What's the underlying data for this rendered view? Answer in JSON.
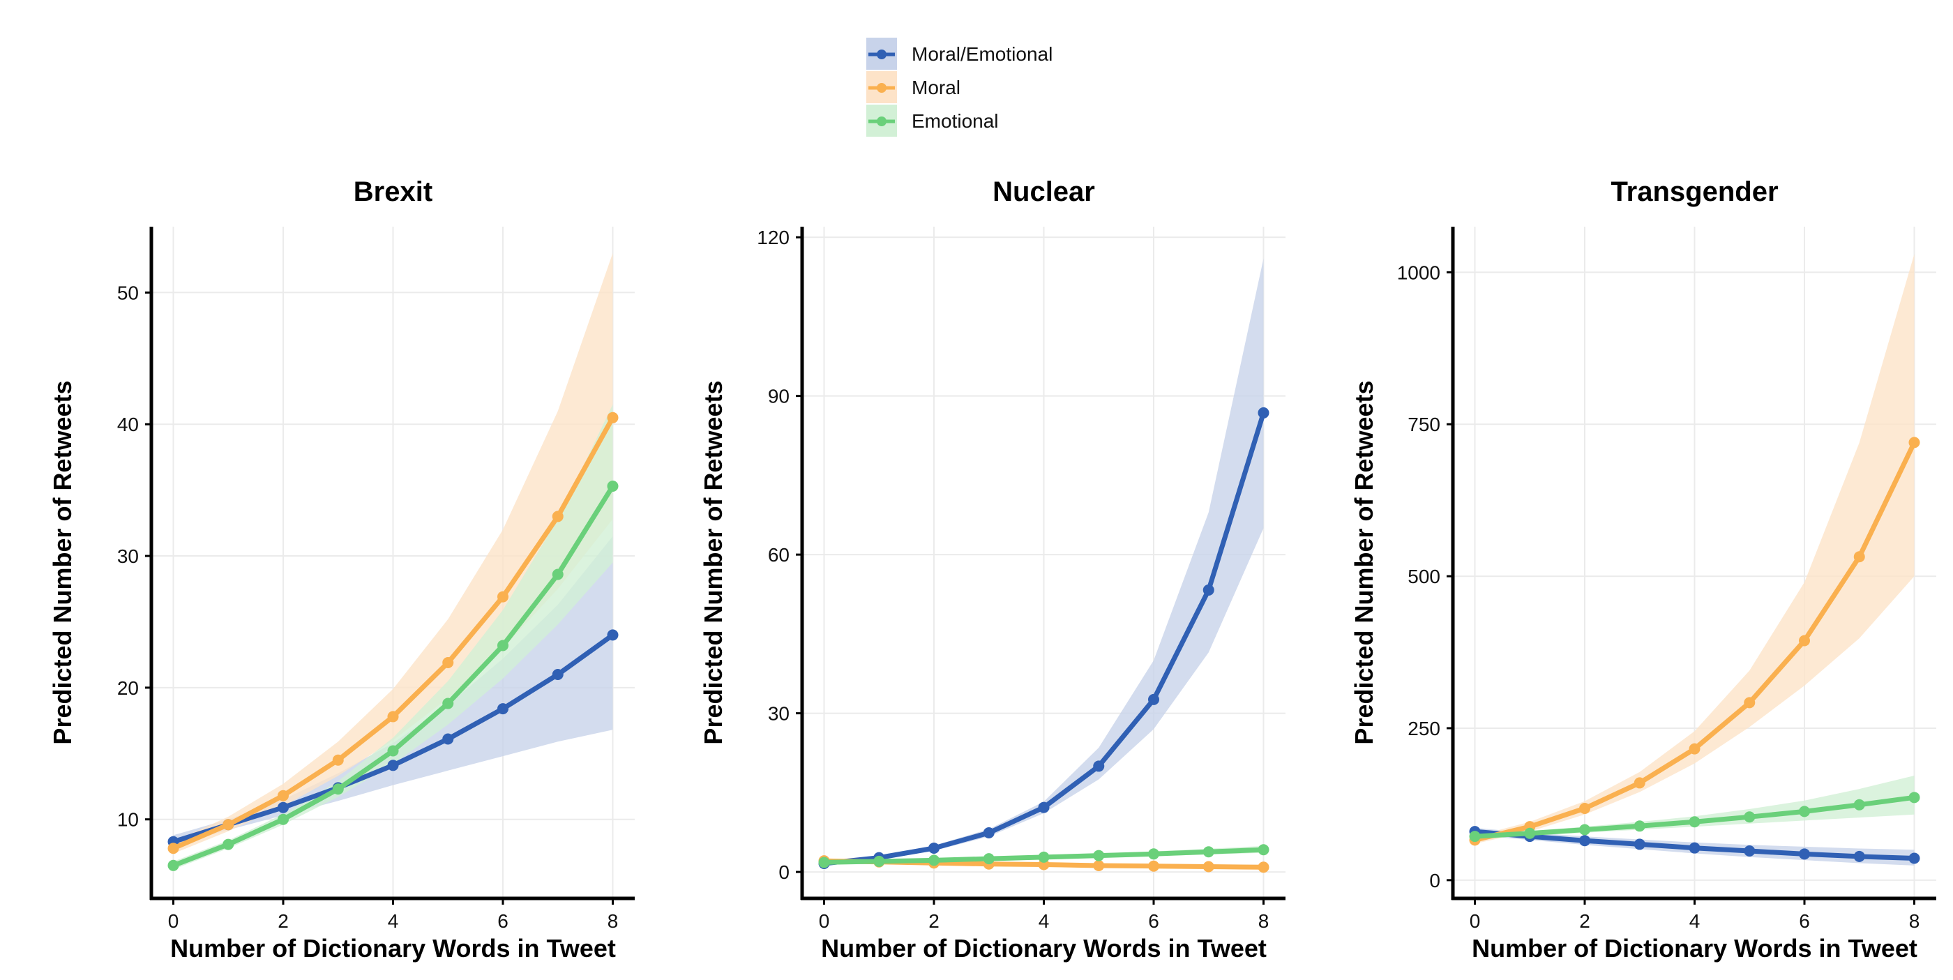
{
  "legend": {
    "placement": "top-center",
    "items": [
      {
        "label": "Moral/Emotional",
        "color": "#3060B4",
        "band_color": "#C8D3EA"
      },
      {
        "label": "Moral",
        "color": "#FAB04F",
        "band_color": "#FDE3C8"
      },
      {
        "label": "Emotional",
        "color": "#6AD07A",
        "band_color": "#D2F0D6"
      }
    ]
  },
  "chart_data": [
    {
      "type": "line",
      "title": "Brexit",
      "xlabel": "Number of Dictionary Words in Tweet",
      "ylabel": "Predicted Number of Retweets",
      "x": [
        0,
        1,
        2,
        3,
        4,
        5,
        6,
        7,
        8
      ],
      "xlim": [
        -0.4,
        8.4
      ],
      "ylim": [
        4,
        55
      ],
      "xticks": [
        0,
        2,
        4,
        6,
        8
      ],
      "yticks": [
        10,
        20,
        30,
        40,
        50
      ],
      "grid": true,
      "series": [
        {
          "name": "Moral/Emotional",
          "color": "#3060B4",
          "band_color": "#C8D3EA",
          "values": [
            8.3,
            9.6,
            10.9,
            12.4,
            14.1,
            16.1,
            18.4,
            21.0,
            24.0
          ],
          "lower": [
            8.0,
            9.2,
            10.3,
            11.4,
            12.6,
            13.7,
            14.8,
            15.9,
            16.8
          ],
          "upper": [
            8.8,
            10.0,
            11.5,
            13.5,
            15.8,
            18.7,
            22.2,
            26.3,
            31.5
          ]
        },
        {
          "name": "Moral",
          "color": "#FAB04F",
          "band_color": "#FDE3C8",
          "values": [
            7.8,
            9.6,
            11.8,
            14.5,
            17.8,
            21.9,
            26.9,
            33.0,
            40.5
          ],
          "lower": [
            7.4,
            9.1,
            11.0,
            13.3,
            16.0,
            19.2,
            23.0,
            27.5,
            32.8
          ],
          "upper": [
            8.3,
            10.2,
            12.7,
            15.9,
            19.9,
            25.2,
            32.0,
            41.0,
            53.0
          ]
        },
        {
          "name": "Emotional",
          "color": "#6AD07A",
          "band_color": "#D2F0D6",
          "values": [
            6.5,
            8.1,
            10.0,
            12.3,
            15.2,
            18.8,
            23.2,
            28.6,
            35.3
          ],
          "lower": [
            6.2,
            7.8,
            9.6,
            11.7,
            14.2,
            17.2,
            20.7,
            24.8,
            29.5
          ],
          "upper": [
            6.8,
            8.4,
            10.4,
            12.9,
            16.2,
            20.5,
            25.9,
            32.8,
            41.5
          ]
        }
      ]
    },
    {
      "type": "line",
      "title": "Nuclear",
      "xlabel": "Number of Dictionary Words in Tweet",
      "ylabel": "Predicted Number of Retweets",
      "x": [
        0,
        1,
        2,
        3,
        4,
        5,
        6,
        7,
        8
      ],
      "xlim": [
        -0.4,
        8.4
      ],
      "ylim": [
        -5,
        122
      ],
      "xticks": [
        0,
        2,
        4,
        6,
        8
      ],
      "yticks": [
        0,
        30,
        60,
        90,
        120
      ],
      "grid": true,
      "series": [
        {
          "name": "Moral/Emotional",
          "color": "#3060B4",
          "band_color": "#C8D3EA",
          "values": [
            1.6,
            2.7,
            4.5,
            7.4,
            12.2,
            20.0,
            32.6,
            53.3,
            86.8
          ],
          "lower": [
            1.3,
            2.3,
            4.0,
            6.7,
            11.1,
            17.5,
            27.0,
            41.5,
            65.0
          ],
          "upper": [
            2.0,
            3.1,
            5.0,
            8.1,
            13.3,
            23.5,
            40.0,
            68.0,
            116.0
          ]
        },
        {
          "name": "Moral",
          "color": "#FAB04F",
          "band_color": "#FDE3C8",
          "values": [
            2.1,
            1.9,
            1.7,
            1.5,
            1.4,
            1.2,
            1.1,
            1.0,
            0.9
          ],
          "lower": [
            1.8,
            1.6,
            1.4,
            1.2,
            1.0,
            0.8,
            0.7,
            0.6,
            0.5
          ],
          "upper": [
            2.4,
            2.2,
            2.0,
            1.8,
            1.7,
            1.6,
            1.5,
            1.4,
            1.3
          ]
        },
        {
          "name": "Emotional",
          "color": "#6AD07A",
          "band_color": "#D2F0D6",
          "values": [
            1.8,
            2.0,
            2.2,
            2.5,
            2.8,
            3.1,
            3.4,
            3.8,
            4.2
          ],
          "lower": [
            1.6,
            1.8,
            2.0,
            2.2,
            2.4,
            2.7,
            3.0,
            3.3,
            3.6
          ],
          "upper": [
            2.0,
            2.2,
            2.5,
            2.8,
            3.2,
            3.5,
            3.9,
            4.4,
            4.9
          ]
        }
      ]
    },
    {
      "type": "line",
      "title": "Transgender",
      "xlabel": "Number of Dictionary Words in Tweet",
      "ylabel": "Predicted Number of Retweets",
      "x": [
        0,
        1,
        2,
        3,
        4,
        5,
        6,
        7,
        8
      ],
      "xlim": [
        -0.4,
        8.4
      ],
      "ylim": [
        -30,
        1075
      ],
      "xticks": [
        0,
        2,
        4,
        6,
        8
      ],
      "yticks": [
        0,
        250,
        500,
        750,
        1000
      ],
      "grid": true,
      "series": [
        {
          "name": "Moral/Emotional",
          "color": "#3060B4",
          "band_color": "#C8D3EA",
          "values": [
            80,
            72,
            65,
            59,
            53,
            48,
            43,
            39,
            36
          ],
          "lower": [
            74,
            66,
            58,
            51,
            44,
            38,
            33,
            28,
            24
          ],
          "upper": [
            86,
            78,
            72,
            67,
            62,
            58,
            55,
            52,
            50
          ]
        },
        {
          "name": "Moral",
          "color": "#FAB04F",
          "band_color": "#FDE3C8",
          "values": [
            66,
            88,
            118,
            160,
            216,
            292,
            394,
            532,
            720
          ],
          "lower": [
            60,
            80,
            108,
            145,
            192,
            252,
            320,
            398,
            500
          ],
          "upper": [
            72,
            96,
            130,
            178,
            245,
            345,
            490,
            720,
            1030
          ]
        },
        {
          "name": "Emotional",
          "color": "#6AD07A",
          "band_color": "#D2F0D6",
          "values": [
            72,
            77,
            83,
            89,
            96,
            104,
            113,
            124,
            136
          ],
          "lower": [
            68,
            73,
            78,
            83,
            88,
            93,
            98,
            103,
            108
          ],
          "upper": [
            76,
            81,
            88,
            96,
            105,
            117,
            131,
            150,
            172
          ]
        }
      ]
    }
  ]
}
